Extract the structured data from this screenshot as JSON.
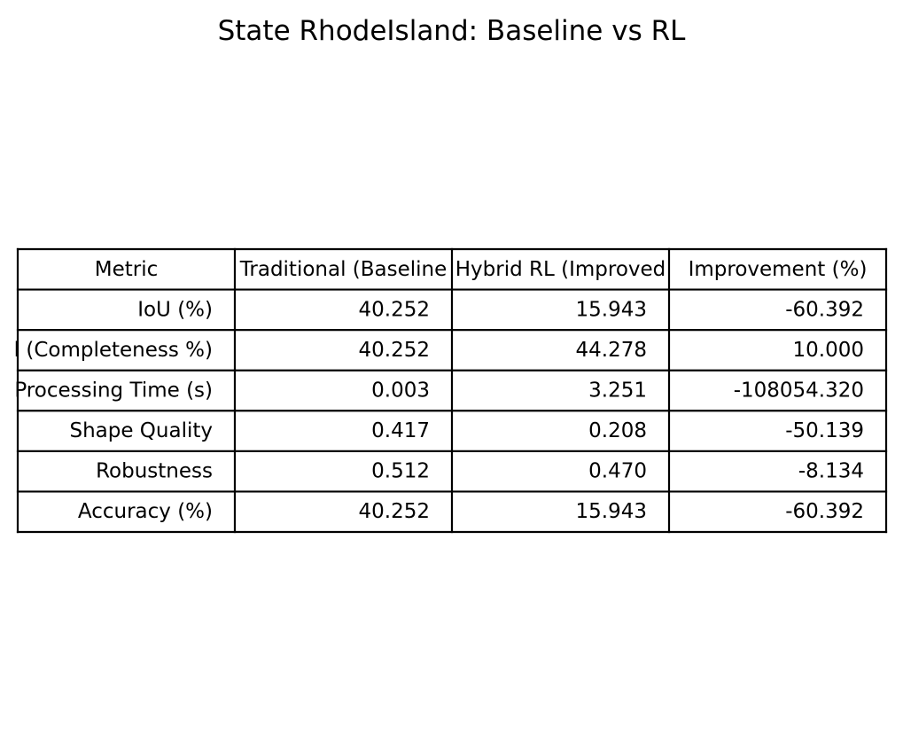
{
  "chart_data": {
    "type": "table",
    "title": "State RhodeIsland: Baseline vs RL",
    "columns": [
      "Metric",
      "Traditional (Baseline",
      "Hybrid RL (Improved",
      "Improvement (%)"
    ],
    "rows": [
      [
        "IoU (%)",
        "40.252",
        "15.943",
        "-60.392"
      ],
      [
        "l (Completeness %)",
        "40.252",
        "44.278",
        "10.000"
      ],
      [
        "Processing Time (s)",
        "0.003",
        "3.251",
        "-108054.320"
      ],
      [
        "Shape Quality",
        "0.417",
        "0.208",
        "-50.139"
      ],
      [
        "Robustness",
        "0.512",
        "0.470",
        "-8.134"
      ],
      [
        "Accuracy (%)",
        "40.252",
        "15.943",
        "-60.392"
      ]
    ]
  }
}
